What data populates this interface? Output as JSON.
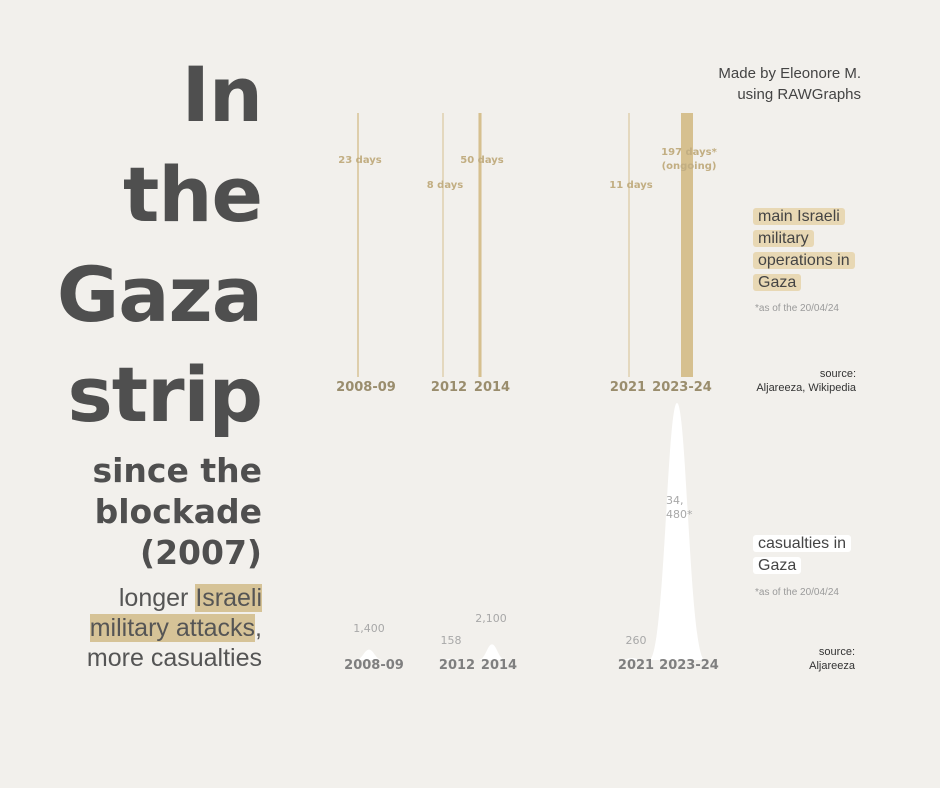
{
  "title": {
    "line1": "In",
    "line2": "the",
    "line3": "Gaza",
    "line4": "strip",
    "sub1": "since the",
    "sub2": "blockade",
    "sub3": "(2007)",
    "tag_a": "longer ",
    "tag_b": "Israeli",
    "tag_c": "military attacks",
    "tag_d": ",",
    "tag_e": "more casualties"
  },
  "credit": {
    "line1": "Made by Eleonore M.",
    "line2": "using RAWGraphs"
  },
  "legend_ops": {
    "label": "main Israeli military operations in Gaza",
    "note": "*as of the 20/04/24",
    "source_label": "source:",
    "source": "Aljareeza, Wikipedia"
  },
  "legend_cas": {
    "label": "casualties in Gaza",
    "note": "*as of the 20/04/24",
    "source_label": "source:",
    "source": "Aljareeza"
  },
  "colors": {
    "operations": "#d6c08f",
    "casualties": "#ffffff",
    "background": "#f2f0ec",
    "title": "#4f4f4f"
  },
  "chart_data": [
    {
      "type": "bar",
      "title": "main Israeli military operations in Gaza",
      "unit": "days",
      "categories": [
        "2008-09",
        "2012",
        "2014",
        "2021",
        "2023-24"
      ],
      "values": [
        23,
        8,
        50,
        11,
        197
      ],
      "labels": [
        "23 days",
        "8 days",
        "50 days",
        "11 days",
        "197 days* (ongoing)"
      ],
      "ylim": [
        0,
        197
      ]
    },
    {
      "type": "area",
      "title": "casualties in Gaza",
      "categories": [
        "2008-09",
        "2012",
        "2014",
        "2021",
        "2023-24"
      ],
      "values": [
        1400,
        158,
        2100,
        260,
        34480
      ],
      "labels": [
        "1,400",
        "158",
        "2,100",
        "260",
        "34, 480*"
      ],
      "ylim": [
        0,
        34480
      ]
    }
  ]
}
